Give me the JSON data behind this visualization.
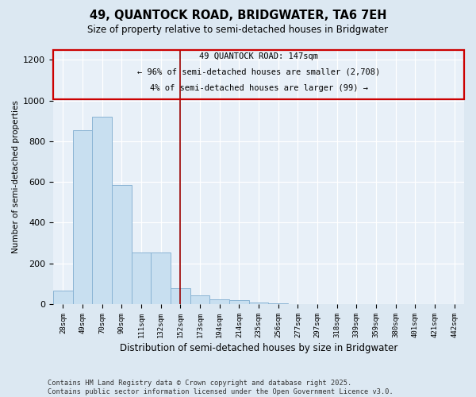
{
  "title": "49, QUANTOCK ROAD, BRIDGWATER, TA6 7EH",
  "subtitle": "Size of property relative to semi-detached houses in Bridgwater",
  "xlabel": "Distribution of semi-detached houses by size in Bridgwater",
  "ylabel": "Number of semi-detached properties",
  "categories": [
    "28sqm",
    "49sqm",
    "70sqm",
    "90sqm",
    "111sqm",
    "132sqm",
    "152sqm",
    "173sqm",
    "194sqm",
    "214sqm",
    "235sqm",
    "256sqm",
    "277sqm",
    "297sqm",
    "318sqm",
    "339sqm",
    "359sqm",
    "380sqm",
    "401sqm",
    "421sqm",
    "442sqm"
  ],
  "values": [
    65,
    855,
    920,
    585,
    255,
    255,
    80,
    45,
    25,
    18,
    10,
    3,
    0,
    0,
    0,
    0,
    0,
    0,
    0,
    0,
    0
  ],
  "bar_color": "#c8dff0",
  "bar_edge_color": "#8ab4d4",
  "vline_x_index": 6,
  "vline_color": "#990000",
  "annotation_title": "49 QUANTOCK ROAD: 147sqm",
  "annotation_line1": "← 96% of semi-detached houses are smaller (2,708)",
  "annotation_line2": "4% of semi-detached houses are larger (99) →",
  "annotation_box_color": "#cc0000",
  "ylim": [
    0,
    1250
  ],
  "yticks": [
    0,
    200,
    400,
    600,
    800,
    1000,
    1200
  ],
  "footer_line1": "Contains HM Land Registry data © Crown copyright and database right 2025.",
  "footer_line2": "Contains public sector information licensed under the Open Government Licence v3.0.",
  "fig_bg_color": "#dce8f2",
  "plot_bg_color": "#e8f0f8"
}
